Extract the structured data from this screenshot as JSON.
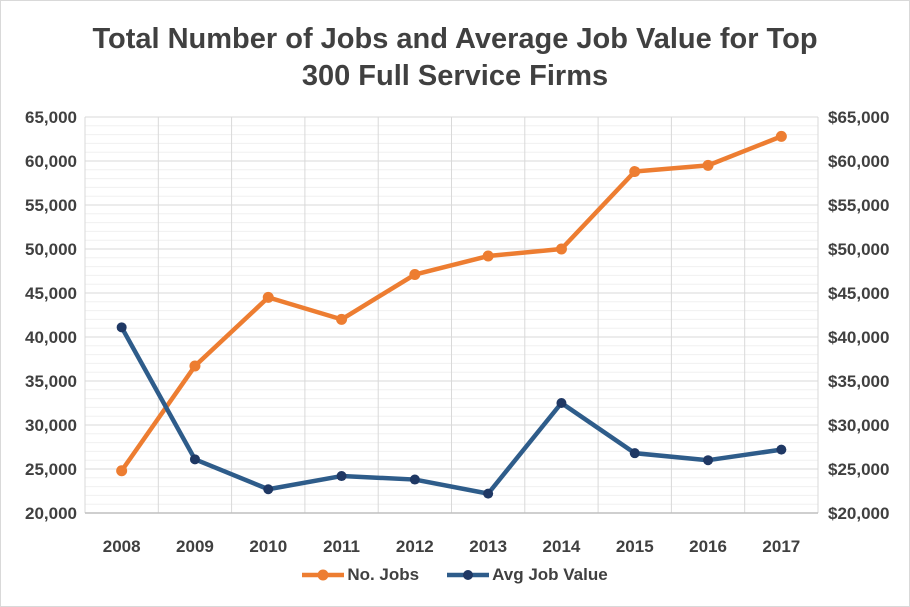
{
  "chart_data": {
    "type": "line",
    "title": "Total Number of Jobs and Average Job Value for Top 300 Full Service Firms",
    "title_lines": [
      "Total Number of Jobs and Average Job Value for Top",
      "300 Full Service Firms"
    ],
    "categories": [
      "2008",
      "2009",
      "2010",
      "2011",
      "2012",
      "2013",
      "2014",
      "2015",
      "2016",
      "2017"
    ],
    "series": [
      {
        "name": "No. Jobs",
        "axis": "left",
        "color": "#ED7D31",
        "marker_color": "#ED7D31",
        "values": [
          24800,
          36700,
          44500,
          42000,
          47100,
          49200,
          50000,
          58800,
          59500,
          62800
        ]
      },
      {
        "name": "Avg Job Value",
        "axis": "right",
        "color": "#2E5C8A",
        "marker_color": "#1F3864",
        "values": [
          41100,
          26100,
          22700,
          24200,
          23800,
          22200,
          32500,
          26800,
          26000,
          27200
        ]
      }
    ],
    "left_axis": {
      "min": 20000,
      "max": 65000,
      "major_step": 5000,
      "minor_step": 1000,
      "tick_labels": [
        "20,000",
        "25,000",
        "30,000",
        "35,000",
        "40,000",
        "45,000",
        "50,000",
        "55,000",
        "60,000",
        "65,000"
      ]
    },
    "right_axis": {
      "min": 20000,
      "max": 65000,
      "major_step": 5000,
      "tick_labels": [
        "$20,000",
        "$25,000",
        "$30,000",
        "$35,000",
        "$40,000",
        "$45,000",
        "$50,000",
        "$55,000",
        "$60,000",
        "$65,000"
      ]
    },
    "legend": {
      "position": "bottom",
      "items": [
        "No. Jobs",
        "Avg Job Value"
      ]
    },
    "colors": {
      "text": "#404040",
      "minor_grid": "#F0F0F0",
      "major_grid": "#D9D9D9",
      "vertical_grid": "#D9D9D9",
      "axis_line": "#BFBFBF",
      "plot_border": "#D9D9D9"
    },
    "grid_on": true
  }
}
